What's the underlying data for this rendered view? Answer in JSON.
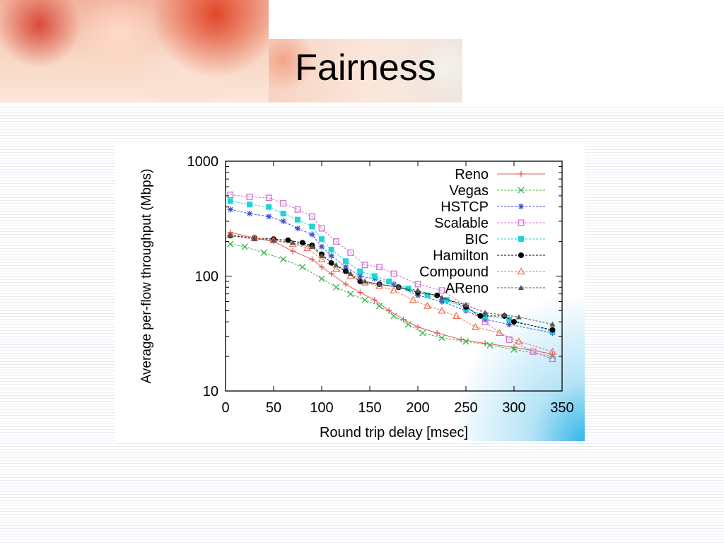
{
  "slide": {
    "title": "Fairness"
  },
  "chart_data": {
    "type": "line",
    "xlabel": "Round trip delay [msec]",
    "ylabel": "Average per-flow throughput (Mbps)",
    "xlim": [
      0,
      350
    ],
    "ylim": [
      10,
      1000
    ],
    "yscale": "log",
    "x_ticks": [
      "0",
      "50",
      "100",
      "150",
      "200",
      "250",
      "300",
      "350"
    ],
    "y_ticks": [
      "10",
      "100",
      "1000"
    ],
    "legend_position": "top-right",
    "series": [
      {
        "name": "Reno",
        "color": "#e05a5a",
        "marker": "plus",
        "points": [
          [
            5,
            240
          ],
          [
            30,
            215
          ],
          [
            50,
            200
          ],
          [
            70,
            165
          ],
          [
            90,
            140
          ],
          [
            100,
            120
          ],
          [
            110,
            105
          ],
          [
            125,
            85
          ],
          [
            140,
            72
          ],
          [
            155,
            62
          ],
          [
            170,
            50
          ],
          [
            185,
            42
          ],
          [
            200,
            36
          ],
          [
            220,
            32
          ],
          [
            245,
            28
          ],
          [
            270,
            26
          ],
          [
            300,
            24
          ],
          [
            340,
            21
          ]
        ]
      },
      {
        "name": "Vegas",
        "color": "#3cb44b",
        "marker": "x",
        "points": [
          [
            5,
            190
          ],
          [
            20,
            180
          ],
          [
            40,
            160
          ],
          [
            60,
            140
          ],
          [
            80,
            120
          ],
          [
            100,
            95
          ],
          [
            115,
            80
          ],
          [
            130,
            70
          ],
          [
            145,
            62
          ],
          [
            160,
            55
          ],
          [
            175,
            45
          ],
          [
            190,
            38
          ],
          [
            205,
            32
          ],
          [
            225,
            29
          ],
          [
            250,
            27
          ],
          [
            275,
            25
          ],
          [
            300,
            23
          ],
          [
            340,
            20
          ]
        ]
      },
      {
        "name": "HSTCP",
        "color": "#3a4fd6",
        "marker": "star",
        "points": [
          [
            5,
            380
          ],
          [
            25,
            350
          ],
          [
            45,
            330
          ],
          [
            60,
            300
          ],
          [
            75,
            260
          ],
          [
            90,
            230
          ],
          [
            100,
            180
          ],
          [
            110,
            150
          ],
          [
            125,
            120
          ],
          [
            140,
            100
          ],
          [
            155,
            95
          ],
          [
            175,
            85
          ],
          [
            200,
            68
          ],
          [
            225,
            60
          ],
          [
            250,
            50
          ],
          [
            270,
            42
          ],
          [
            295,
            38
          ],
          [
            340,
            32
          ]
        ]
      },
      {
        "name": "Scalable",
        "color": "#d070d0",
        "marker": "square",
        "points": [
          [
            5,
            510
          ],
          [
            25,
            490
          ],
          [
            45,
            480
          ],
          [
            60,
            430
          ],
          [
            75,
            380
          ],
          [
            90,
            330
          ],
          [
            100,
            260
          ],
          [
            115,
            200
          ],
          [
            130,
            160
          ],
          [
            145,
            125
          ],
          [
            160,
            120
          ],
          [
            175,
            105
          ],
          [
            200,
            85
          ],
          [
            225,
            75
          ],
          [
            250,
            55
          ],
          [
            270,
            40
          ],
          [
            295,
            28
          ],
          [
            320,
            22
          ],
          [
            340,
            19
          ]
        ]
      },
      {
        "name": "BIC",
        "color": "#19d7d7",
        "marker": "filled-square",
        "points": [
          [
            5,
            450
          ],
          [
            25,
            420
          ],
          [
            45,
            400
          ],
          [
            60,
            350
          ],
          [
            75,
            310
          ],
          [
            90,
            270
          ],
          [
            100,
            210
          ],
          [
            110,
            170
          ],
          [
            125,
            135
          ],
          [
            140,
            110
          ],
          [
            155,
            100
          ],
          [
            170,
            90
          ],
          [
            190,
            78
          ],
          [
            210,
            68
          ],
          [
            230,
            62
          ],
          [
            250,
            52
          ],
          [
            270,
            45
          ],
          [
            295,
            42
          ],
          [
            340,
            33
          ]
        ]
      },
      {
        "name": "Hamilton",
        "color": "#000000",
        "marker": "filled-circle",
        "points": [
          [
            5,
            225
          ],
          [
            30,
            215
          ],
          [
            50,
            210
          ],
          [
            65,
            205
          ],
          [
            80,
            195
          ],
          [
            90,
            185
          ],
          [
            100,
            155
          ],
          [
            110,
            130
          ],
          [
            125,
            110
          ],
          [
            140,
            90
          ],
          [
            160,
            85
          ],
          [
            180,
            80
          ],
          [
            200,
            72
          ],
          [
            220,
            68
          ],
          [
            250,
            54
          ],
          [
            265,
            45
          ],
          [
            290,
            45
          ],
          [
            300,
            40
          ],
          [
            340,
            34
          ]
        ]
      },
      {
        "name": "Compound",
        "color": "#f07050",
        "marker": "triangle",
        "points": [
          [
            5,
            230
          ],
          [
            30,
            215
          ],
          [
            50,
            205
          ],
          [
            70,
            190
          ],
          [
            85,
            175
          ],
          [
            100,
            140
          ],
          [
            115,
            115
          ],
          [
            130,
            100
          ],
          [
            145,
            88
          ],
          [
            160,
            82
          ],
          [
            175,
            75
          ],
          [
            195,
            62
          ],
          [
            210,
            55
          ],
          [
            225,
            50
          ],
          [
            240,
            45
          ],
          [
            260,
            36
          ],
          [
            285,
            32
          ],
          [
            305,
            27
          ],
          [
            340,
            22
          ]
        ]
      },
      {
        "name": "AReno",
        "color": "#555555",
        "marker": "filled-triangle",
        "points": [
          [
            5,
            225
          ],
          [
            30,
            210
          ],
          [
            50,
            205
          ],
          [
            70,
            195
          ],
          [
            90,
            180
          ],
          [
            100,
            150
          ],
          [
            115,
            125
          ],
          [
            130,
            105
          ],
          [
            145,
            90
          ],
          [
            160,
            85
          ],
          [
            180,
            80
          ],
          [
            200,
            75
          ],
          [
            225,
            65
          ],
          [
            250,
            56
          ],
          [
            270,
            48
          ],
          [
            290,
            46
          ],
          [
            305,
            44
          ],
          [
            340,
            38
          ]
        ]
      }
    ]
  }
}
